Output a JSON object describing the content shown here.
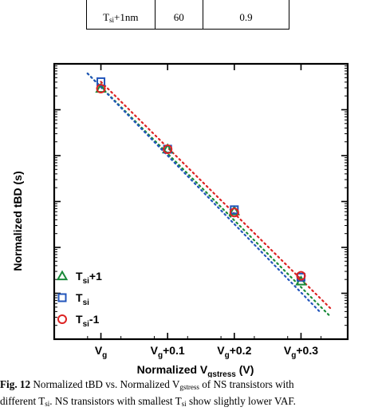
{
  "table_fragment": {
    "row": {
      "label_main": "T",
      "label_sub": "si",
      "label_suffix": "+1nm",
      "value_1": "60",
      "value_2": "0.9"
    }
  },
  "chart_data": {
    "type": "scatter",
    "xlabel_main": "Normalized V",
    "xlabel_sub": "gstress",
    "xlabel_unit": " (V)",
    "ylabel": "Normalized tBD (s)",
    "x_ticks": [
      {
        "value": 0,
        "main": "V",
        "sub": "g",
        "suffix": ""
      },
      {
        "value": 0.1,
        "main": "V",
        "sub": "g",
        "suffix": "+0.1"
      },
      {
        "value": 0.2,
        "main": "V",
        "sub": "g",
        "suffix": "+0.2"
      },
      {
        "value": 0.3,
        "main": "V",
        "sub": "g",
        "suffix": "+0.3"
      }
    ],
    "xlim": [
      -0.07,
      0.37
    ],
    "ylim": [
      0,
      1
    ],
    "log_y": true,
    "y_tick_labels": false,
    "legend_placement": "bottom-left",
    "series": [
      {
        "name_main": "T",
        "name_sub": "si",
        "name_suffix": "+1",
        "marker": "triangle",
        "color": "#1a8a3a",
        "x": [
          0,
          0.1,
          0.2,
          0.3
        ],
        "y": [
          0.91,
          0.69,
          0.465,
          0.21
        ],
        "fit": {
          "x0": -0.02,
          "y0": 0.965,
          "x1": 0.345,
          "y1": 0.08
        }
      },
      {
        "name_main": "T",
        "name_sub": "si",
        "name_suffix": "",
        "marker": "square",
        "color": "#2255bb",
        "x": [
          0,
          0.1,
          0.2,
          0.3
        ],
        "y": [
          0.935,
          0.69,
          0.47,
          0.225
        ],
        "fit": {
          "x0": -0.02,
          "y0": 0.965,
          "x1": 0.33,
          "y1": 0.095
        }
      },
      {
        "name_main": "T",
        "name_sub": "si",
        "name_suffix": "-1",
        "marker": "circle",
        "color": "#dd2222",
        "x": [
          0,
          0.1,
          0.2,
          0.3
        ],
        "y": [
          0.91,
          0.69,
          0.46,
          0.23
        ],
        "fit": {
          "x0": 0.0,
          "y0": 0.935,
          "x1": 0.345,
          "y1": 0.11
        }
      }
    ]
  },
  "caption": {
    "fig_label": "Fig. 12",
    "line1_a": " Normalized tBD vs. Normalized V",
    "line1_sub": "gstress",
    "line1_b": " of NS transistors with",
    "line2_a": "different T",
    "line2_sub1": "si",
    "line2_b": ". NS transistors with smallest T",
    "line2_sub2": "si",
    "line2_c": " show slightly lower VAF."
  }
}
